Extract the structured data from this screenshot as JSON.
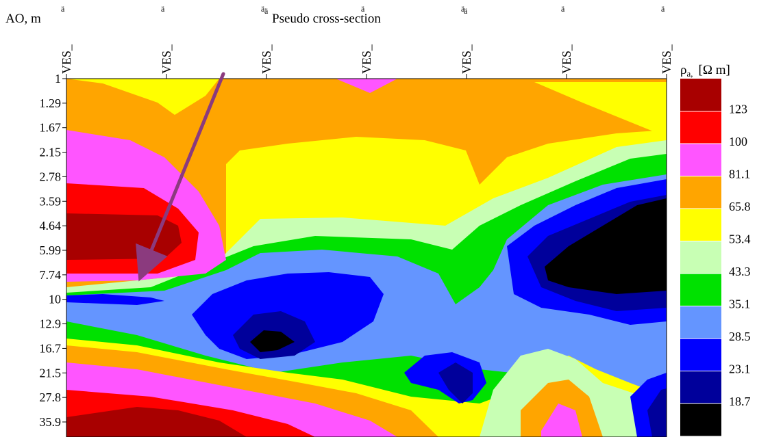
{
  "chart_data": {
    "type": "heatmap",
    "title": "Pseudo cross-section",
    "title_marker": "ä",
    "ylabel": "AO, m",
    "colorbar_label": "ρa, [Ω m]",
    "colorbar_symbol": "ρ",
    "colorbar_subscript": "a,",
    "colorbar_unit": "[Ω m]",
    "y_scale": "log",
    "y_ticks": [
      "1",
      "1.29",
      "1.67",
      "2.15",
      "2.78",
      "3.59",
      "4.64",
      "5.99",
      "7.74",
      "10",
      "12.9",
      "16.7",
      "21.5",
      "27.8",
      "35.9"
    ],
    "x_labels": [
      "VES_",
      "VES_",
      "VES_",
      "VES_",
      "VES_",
      "VES_",
      "VES_"
    ],
    "colorbar": {
      "levels": [
        "123",
        "100",
        "81.1",
        "65.8",
        "53.4",
        "43.3",
        "35.1",
        "28.5",
        "23.1",
        "18.7"
      ],
      "colors": [
        "#a80000",
        "#ff0000",
        "#ff55ff",
        "#ffa500",
        "#ffff00",
        "#c8ffb4",
        "#00e100",
        "#6495ff",
        "#0000ff",
        "#00009b",
        "#000000"
      ]
    },
    "annotation": {
      "type": "arrow",
      "color": "#8b3a7e"
    }
  }
}
